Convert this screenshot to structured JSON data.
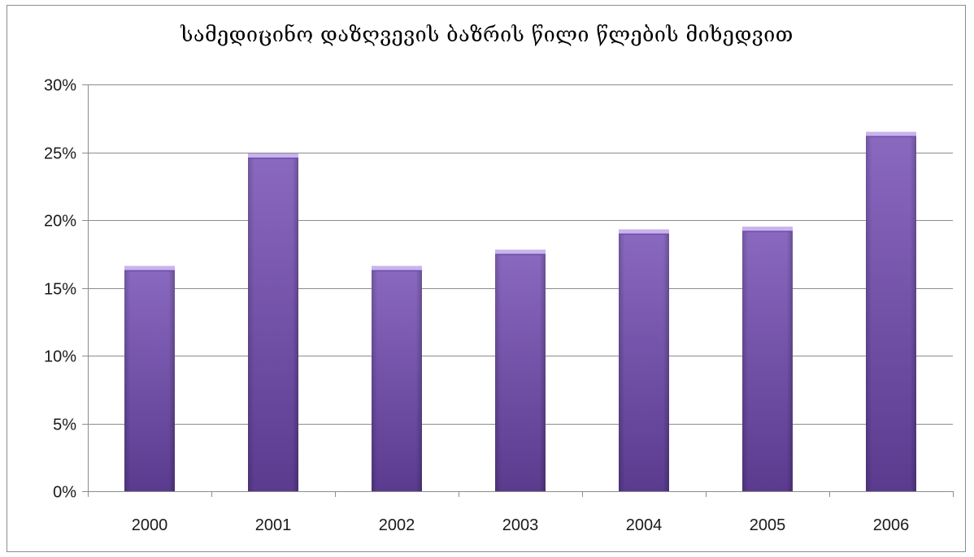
{
  "chart_data": {
    "type": "bar",
    "title": "სამედიცინო დაზღვევის ბაზრის წილი წლების მიხედვით",
    "xlabel": "",
    "ylabel": "",
    "categories": [
      "2000",
      "2001",
      "2002",
      "2003",
      "2004",
      "2005",
      "2006"
    ],
    "values": [
      16.6,
      24.9,
      16.6,
      17.8,
      19.3,
      19.5,
      26.5
    ],
    "ylim": [
      0,
      30
    ],
    "yticks": [
      0,
      5,
      10,
      15,
      20,
      25,
      30
    ],
    "ytick_labels": [
      "0%",
      "5%",
      "10%",
      "15%",
      "20%",
      "25%",
      "30%"
    ],
    "grid": "horizontal",
    "legend": "none",
    "colors": {
      "bar_light": "#9a7fc9",
      "bar_mid": "#7b5ab0",
      "bar_dark": "#4f3380",
      "bar_top": "#c9b3ee",
      "grid": "#8c8c8c"
    }
  }
}
